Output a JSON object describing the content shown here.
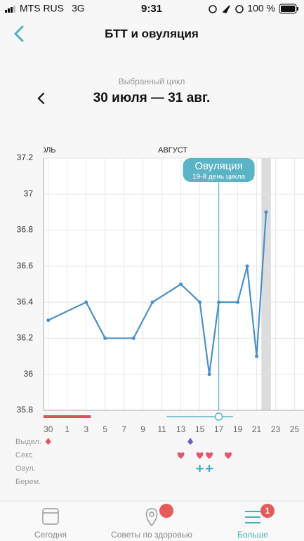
{
  "status_bar": {
    "carrier": "MTS RUS",
    "network": "3G",
    "time": "9:31",
    "battery": "100 %"
  },
  "header": {
    "title": "БТТ и овуляция"
  },
  "cycle": {
    "caption": "Выбранный цикл",
    "range": "30 июля — 31 авг."
  },
  "chart_data": {
    "type": "line",
    "x": [
      1,
      5,
      7,
      10,
      12,
      15,
      17,
      18,
      19,
      21,
      22,
      23,
      24
    ],
    "values": [
      36.3,
      36.4,
      36.2,
      36.2,
      36.4,
      36.5,
      36.4,
      36.0,
      36.4,
      36.4,
      36.6,
      36.1,
      36.9
    ],
    "color": "#4a90c8",
    "xlim": [
      0.5,
      28
    ],
    "xticks": [
      {
        "value": 1,
        "label": "30"
      },
      {
        "value": 3,
        "label": "1"
      },
      {
        "value": 5,
        "label": "3"
      },
      {
        "value": 7,
        "label": "5"
      },
      {
        "value": 9,
        "label": "7"
      },
      {
        "value": 11,
        "label": "9"
      },
      {
        "value": 13,
        "label": "11"
      },
      {
        "value": 15,
        "label": "13"
      },
      {
        "value": 17,
        "label": "15"
      },
      {
        "value": 19,
        "label": "17"
      },
      {
        "value": 21,
        "label": "19"
      },
      {
        "value": 23,
        "label": "21"
      },
      {
        "value": 25,
        "label": "23"
      },
      {
        "value": 27,
        "label": "25"
      }
    ],
    "ylim": [
      35.8,
      37.2
    ],
    "yticks": [
      35.8,
      36,
      36.2,
      36.4,
      36.6,
      36.8,
      37,
      37.2
    ],
    "grid": true,
    "month_labels": [
      {
        "label": "ИЮЛЬ",
        "x": 1.8
      },
      {
        "label": "АВГУСТ",
        "x": 15.7
      }
    ],
    "highlight_day": 24,
    "ovulation": {
      "day": 19,
      "title": "Овуляция",
      "subtitle": "19-й день цикла",
      "color": "#5ab4c5"
    },
    "period_range": [
      0.5,
      5.5
    ],
    "fertile_range": [
      13.5,
      20.5
    ],
    "event_rows": [
      {
        "label": "Выдел.",
        "days": [
          1,
          16
        ],
        "colors": [
          "#e0535a",
          "#6a5acd"
        ]
      },
      {
        "label": "Секс",
        "days": [
          15,
          17,
          18,
          20
        ],
        "colors": [
          "#e8546a",
          "#e8546a",
          "#e8546a",
          "#e8546a"
        ]
      },
      {
        "label": "Овул.",
        "days": [
          17,
          18
        ],
        "colors": [
          "#3fb0bd",
          "#3fb0bd"
        ]
      },
      {
        "label": "Берем.",
        "days": [],
        "colors": []
      }
    ]
  },
  "tabs": [
    {
      "label": "Сегодня"
    },
    {
      "label": "Советы по здоровью"
    },
    {
      "label": "Больше",
      "badge": 1
    }
  ]
}
